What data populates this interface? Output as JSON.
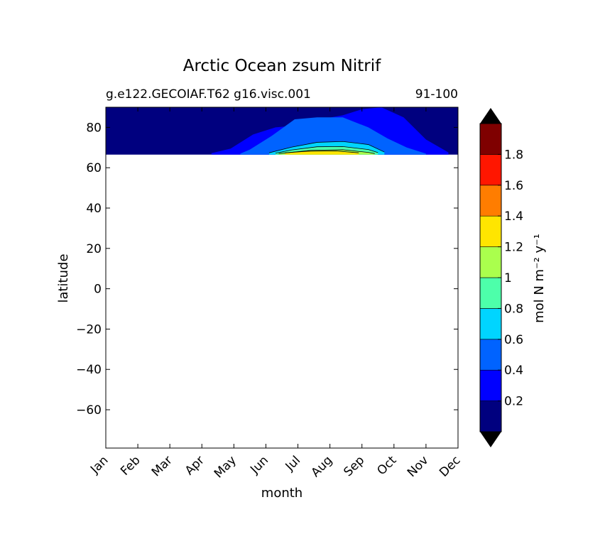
{
  "chart_data": {
    "type": "heatmap",
    "title": "Arctic Ocean zsum Nitrif",
    "subtitle_left": "g.e122.GECOIAF.T62 g16.visc.001",
    "subtitle_right": "91-100",
    "xlabel": "month",
    "ylabel": "latitude",
    "x_ticks": [
      "Jan",
      "Feb",
      "Mar",
      "Apr",
      "May",
      "Jun",
      "Jul",
      "Aug",
      "Sep",
      "Oct",
      "Nov",
      "Dec"
    ],
    "xlim": [
      1,
      12
    ],
    "ylim": [
      -79,
      90
    ],
    "y_ticks": [
      80,
      60,
      40,
      20,
      0,
      -20,
      -40,
      -60
    ],
    "y_tick_labels": [
      "80",
      "60",
      "40",
      "20",
      "0",
      "−20",
      "−40",
      "−60"
    ],
    "data_lat_range": [
      66.5,
      90
    ],
    "colorbar": {
      "label": "mol N m⁻² y⁻¹",
      "levels": [
        0,
        0.2,
        0.4,
        0.6,
        0.8,
        1.0,
        1.2,
        1.4,
        1.6,
        1.8,
        2.0
      ],
      "tick_values": [
        0.2,
        0.4,
        0.6,
        0.8,
        1.0,
        1.2,
        1.4,
        1.6,
        1.8
      ],
      "tick_labels": [
        "0.2",
        "0.4",
        "0.6",
        "0.8",
        "1",
        "1.2",
        "1.4",
        "1.6",
        "1.8"
      ],
      "colors": [
        "#00007f",
        "#0000ff",
        "#0063ff",
        "#00d5ff",
        "#4dffaa",
        "#aaff4d",
        "#ffe500",
        "#ff7d00",
        "#ff1600",
        "#7f0000"
      ],
      "extend": "both",
      "under_color": "#000000",
      "over_color": "#000000"
    },
    "contour_bands": [
      {
        "level": 0.2,
        "months": [
          4.3,
          4.9,
          5.6,
          6.3,
          7.0,
          7.7,
          8.4,
          9.0,
          9.6,
          10.3,
          11.0,
          11.7
        ],
        "lat_top": [
          67.2,
          69.5,
          76.5,
          80.0,
          81.0,
          84.0,
          86.0,
          89.0,
          90.0,
          85.0,
          74.0,
          67.6
        ]
      },
      {
        "level": 0.4,
        "months": [
          5.2,
          5.5,
          6.2,
          6.9,
          7.6,
          8.4,
          9.2,
          9.8,
          10.4,
          11.0
        ],
        "lat_top": [
          67.0,
          69.0,
          76.0,
          84.0,
          85.0,
          85.0,
          80.0,
          74.5,
          70.0,
          67.0
        ]
      },
      {
        "level": 0.6,
        "months": [
          6.1,
          6.8,
          7.6,
          8.4,
          9.2,
          9.7
        ],
        "lat_top": [
          67.4,
          70.2,
          72.6,
          73.0,
          71.5,
          67.8
        ]
      },
      {
        "level": 0.8,
        "months": [
          6.3,
          6.8,
          7.6,
          8.4,
          9.2,
          9.5
        ],
        "lat_top": [
          67.2,
          68.8,
          70.4,
          70.5,
          69.0,
          67.5
        ]
      },
      {
        "level": 1.0,
        "months": [
          6.4,
          7.4,
          8.4,
          9.2,
          9.4
        ],
        "lat_top": [
          67.0,
          68.6,
          68.9,
          67.6,
          67.0
        ]
      },
      {
        "level": 1.2,
        "months": [
          6.6,
          7.3,
          8.2,
          8.9
        ],
        "lat_top": [
          67.4,
          68.2,
          68.3,
          67.4
        ]
      }
    ]
  }
}
